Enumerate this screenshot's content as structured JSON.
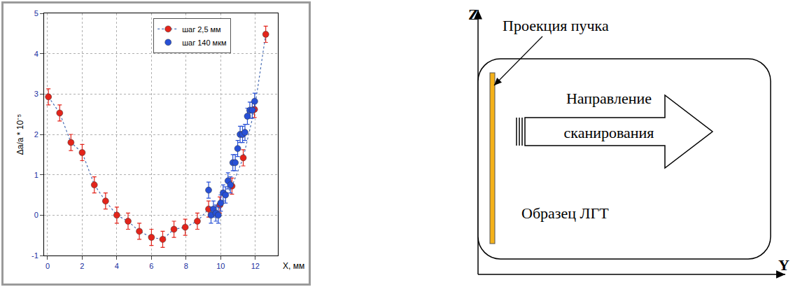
{
  "chart_data": {
    "type": "scatter",
    "xlabel": "X, мм",
    "ylabel": "Δa/a * 10⁻⁵",
    "xlim": [
      -0.2,
      13.3
    ],
    "xticks": [
      0,
      2,
      4,
      6,
      8,
      10,
      12
    ],
    "ylim": [
      -1,
      5
    ],
    "yticks": [
      -1,
      0,
      1,
      2,
      3,
      4,
      5
    ],
    "grid": true,
    "legend": "upper right",
    "series": [
      {
        "name": "шаг 2,5 мм",
        "color": "#e3241b",
        "marker": "circle",
        "line_style": "dotted",
        "x": [
          0.05,
          0.7,
          1.35,
          2.0,
          2.7,
          3.35,
          4.0,
          4.65,
          5.3,
          6.0,
          6.65,
          7.3,
          7.95,
          8.65,
          9.3,
          9.95,
          10.65,
          11.3,
          11.95,
          12.6
        ],
        "values": [
          2.93,
          2.53,
          1.8,
          1.55,
          0.75,
          0.35,
          0.0,
          -0.15,
          -0.4,
          -0.55,
          -0.6,
          -0.35,
          -0.3,
          -0.15,
          0.15,
          0.25,
          0.72,
          1.42,
          2.62,
          4.48
        ],
        "errors": [
          0.2,
          0.2,
          0.2,
          0.2,
          0.2,
          0.2,
          0.2,
          0.2,
          0.2,
          0.2,
          0.2,
          0.2,
          0.2,
          0.2,
          0.2,
          0.2,
          0.2,
          0.2,
          0.2,
          0.2
        ]
      },
      {
        "name": "шаг 140 мкм",
        "color": "#2750d6",
        "marker": "circle",
        "x": [
          9.3,
          9.44,
          9.58,
          9.72,
          9.86,
          10.0,
          10.14,
          10.28,
          10.42,
          10.56,
          10.7,
          10.84,
          10.98,
          11.12,
          11.26,
          11.4,
          11.54,
          11.68,
          11.82,
          11.96
        ],
        "values": [
          0.62,
          0.0,
          0.15,
          0.05,
          0.0,
          0.3,
          0.55,
          0.5,
          0.85,
          0.75,
          1.3,
          1.3,
          1.65,
          2.0,
          2.0,
          2.05,
          2.45,
          2.6,
          2.6,
          2.82
        ],
        "errors": [
          0.2,
          0.2,
          0.2,
          0.2,
          0.2,
          0.2,
          0.2,
          0.2,
          0.2,
          0.2,
          0.2,
          0.2,
          0.2,
          0.2,
          0.2,
          0.2,
          0.2,
          0.2,
          0.2,
          0.2
        ]
      }
    ]
  },
  "diagram": {
    "axis_z": "Z",
    "axis_y": "Y",
    "beam_label": "Проекция пучка",
    "scan_label": [
      "Направление",
      "сканирования"
    ],
    "sample_label": "Образец ЛГТ"
  }
}
